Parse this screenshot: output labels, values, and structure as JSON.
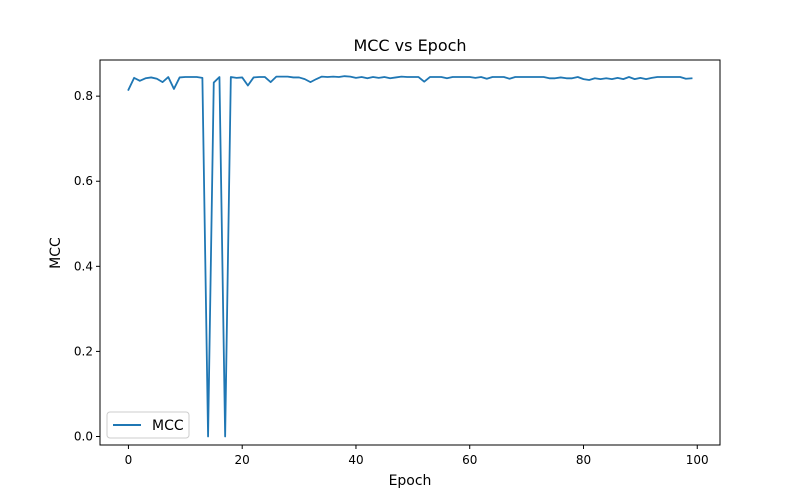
{
  "chart_data": {
    "type": "line",
    "title": "MCC vs Epoch",
    "xlabel": "Epoch",
    "ylabel": "MCC",
    "xlim": [
      -5,
      104
    ],
    "ylim": [
      -0.02,
      0.885
    ],
    "xticks": [
      0,
      20,
      40,
      60,
      80,
      100
    ],
    "yticks": [
      0.0,
      0.2,
      0.4,
      0.6,
      0.8
    ],
    "ytick_labels": [
      "0.0",
      "0.2",
      "0.4",
      "0.6",
      "0.8"
    ],
    "xtick_labels": [
      "0",
      "20",
      "40",
      "60",
      "80",
      "100"
    ],
    "grid": false,
    "legend_position": "lower left",
    "series": [
      {
        "name": "MCC",
        "color": "#1f77b4",
        "x": [
          0,
          1,
          2,
          3,
          4,
          5,
          6,
          7,
          8,
          9,
          10,
          11,
          12,
          13,
          14,
          15,
          16,
          17,
          18,
          19,
          20,
          21,
          22,
          23,
          24,
          25,
          26,
          27,
          28,
          29,
          30,
          31,
          32,
          33,
          34,
          35,
          36,
          37,
          38,
          39,
          40,
          41,
          42,
          43,
          44,
          45,
          46,
          47,
          48,
          49,
          50,
          51,
          52,
          53,
          54,
          55,
          56,
          57,
          58,
          59,
          60,
          61,
          62,
          63,
          64,
          65,
          66,
          67,
          68,
          69,
          70,
          71,
          72,
          73,
          74,
          75,
          76,
          77,
          78,
          79,
          80,
          81,
          82,
          83,
          84,
          85,
          86,
          87,
          88,
          89,
          90,
          91,
          92,
          93,
          94,
          95,
          96,
          97,
          98,
          99
        ],
        "values": [
          0.815,
          0.843,
          0.836,
          0.842,
          0.844,
          0.841,
          0.833,
          0.845,
          0.817,
          0.844,
          0.845,
          0.845,
          0.845,
          0.843,
          0.0,
          0.832,
          0.845,
          0.0,
          0.845,
          0.843,
          0.844,
          0.825,
          0.844,
          0.845,
          0.845,
          0.833,
          0.846,
          0.846,
          0.846,
          0.844,
          0.844,
          0.84,
          0.833,
          0.84,
          0.846,
          0.845,
          0.846,
          0.845,
          0.847,
          0.846,
          0.843,
          0.845,
          0.842,
          0.845,
          0.843,
          0.845,
          0.842,
          0.844,
          0.846,
          0.845,
          0.845,
          0.845,
          0.834,
          0.845,
          0.845,
          0.845,
          0.842,
          0.845,
          0.845,
          0.845,
          0.845,
          0.843,
          0.845,
          0.841,
          0.845,
          0.845,
          0.845,
          0.841,
          0.845,
          0.845,
          0.845,
          0.845,
          0.845,
          0.845,
          0.842,
          0.842,
          0.844,
          0.842,
          0.842,
          0.845,
          0.84,
          0.838,
          0.842,
          0.84,
          0.842,
          0.84,
          0.843,
          0.84,
          0.845,
          0.84,
          0.843,
          0.84,
          0.843,
          0.845,
          0.845,
          0.845,
          0.845,
          0.845,
          0.841,
          0.842
        ]
      }
    ]
  }
}
